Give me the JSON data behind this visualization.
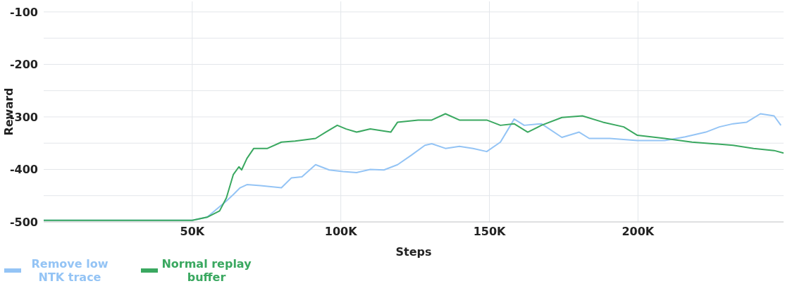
{
  "chart_data": {
    "type": "line",
    "xlabel": "Steps",
    "ylabel": "Reward",
    "xlim": [
      0,
      249000
    ],
    "ylim": [
      -500,
      -80
    ],
    "xticks": [
      {
        "value": 50000,
        "label": "50K"
      },
      {
        "value": 100000,
        "label": "100K"
      },
      {
        "value": 150000,
        "label": "150K"
      },
      {
        "value": 200000,
        "label": "200K"
      }
    ],
    "yticks": [
      -500,
      {
        "value": -450,
        "label": null
      },
      -400,
      {
        "value": -350,
        "label": null
      },
      -300,
      {
        "value": -250,
        "label": null
      },
      -200,
      {
        "value": -150,
        "label": null
      },
      -100
    ],
    "grid": true,
    "legend": "bottom left",
    "marker": "none",
    "line_style": "solid",
    "series": [
      {
        "name": "Remove low NTK trace",
        "color": "#94c4f5",
        "x": [
          0,
          50000,
          55000,
          61500,
          63800,
          66100,
          68400,
          73000,
          80000,
          83400,
          86900,
          91500,
          96100,
          100700,
          105300,
          109900,
          114500,
          119100,
          123700,
          128300,
          130600,
          135200,
          139900,
          144500,
          149100,
          153700,
          157100,
          158300,
          161700,
          167500,
          174400,
          180200,
          183600,
          190500,
          199800,
          209000,
          215900,
          222800,
          227400,
          232000,
          236600,
          241200,
          245800,
          248100
        ],
        "values": [
          -497,
          -497,
          -491,
          -460,
          -448,
          -435,
          -429,
          -431,
          -435,
          -416,
          -414,
          -391,
          -401,
          -404,
          -406,
          -400,
          -401,
          -391,
          -373,
          -354,
          -351,
          -360,
          -356,
          -360,
          -366,
          -348,
          -316,
          -304,
          -316,
          -313,
          -339,
          -329,
          -341,
          -341,
          -345,
          -345,
          -338,
          -329,
          -319,
          -313,
          -310,
          -294,
          -298,
          -316
        ]
      },
      {
        "name": "Normal replay buffer",
        "color": "#3aa860",
        "x": [
          0,
          50000,
          55000,
          59200,
          61500,
          63800,
          65700,
          66600,
          68400,
          70700,
          75300,
          80000,
          84600,
          91500,
          94900,
          98800,
          101800,
          105300,
          109900,
          116800,
          119100,
          126000,
          130600,
          135200,
          139900,
          149100,
          153700,
          158300,
          162900,
          167500,
          174400,
          181300,
          188200,
          195200,
          199800,
          209000,
          218200,
          225100,
          232000,
          238900,
          245800,
          249000
        ],
        "values": [
          -497,
          -497,
          -491,
          -479,
          -454,
          -410,
          -395,
          -401,
          -379,
          -360,
          -360,
          -348,
          -346,
          -341,
          -329,
          -316,
          -323,
          -329,
          -323,
          -329,
          -310,
          -306,
          -306,
          -294,
          -306,
          -306,
          -316,
          -313,
          -329,
          -316,
          -301,
          -298,
          -310,
          -319,
          -335,
          -341,
          -348,
          -351,
          -354,
          -360,
          -364,
          -369
        ]
      }
    ]
  }
}
